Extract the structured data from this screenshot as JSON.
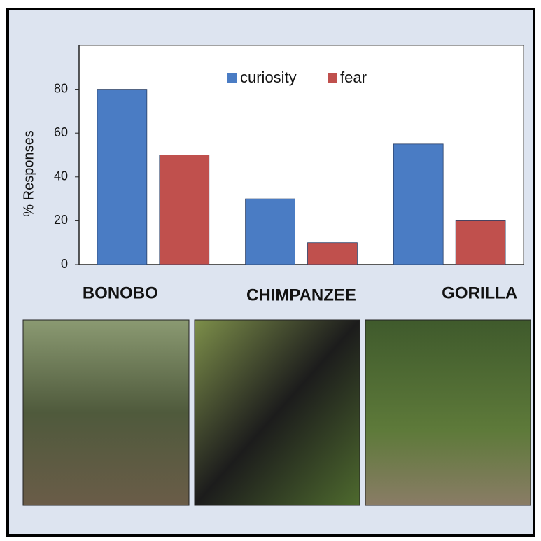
{
  "chart_data": {
    "type": "bar",
    "y_label": "% Responses",
    "categories": [
      "BONOBO",
      "CHIMPANZEE",
      "GORILLA"
    ],
    "series": [
      {
        "name": "curiosity",
        "color": "#4a7cc4",
        "values": [
          80,
          30,
          55
        ]
      },
      {
        "name": "fear",
        "color": "#c0504d",
        "values": [
          50,
          10,
          20
        ]
      }
    ],
    "ylim": [
      0,
      100
    ],
    "yticks": [
      0,
      20,
      40,
      60,
      80
    ],
    "grid": false,
    "legend": "top"
  }
}
